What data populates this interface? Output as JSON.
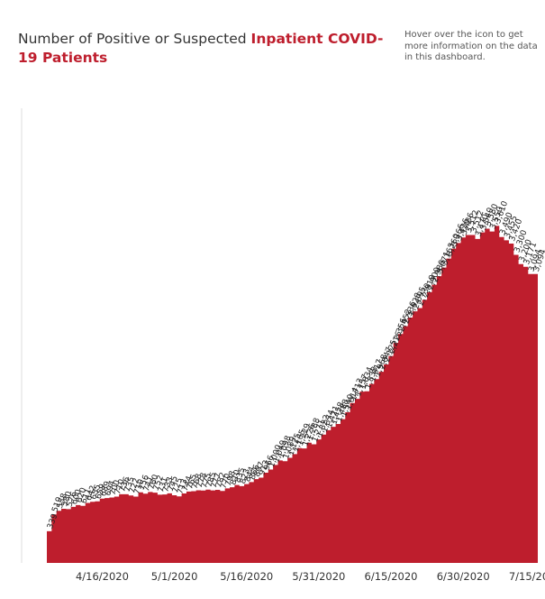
{
  "header": {
    "title_prefix": "Number of Positive or Suspected ",
    "title_highlight": "Inpatient COVID-19 Patients",
    "info_note": "Hover over the icon to get more information on the data in this dashboard."
  },
  "colors": {
    "area": "#be1e2d",
    "axis": "#dddddd",
    "highlight": "#be1e2d"
  },
  "chart_data": {
    "type": "area",
    "title": "Number of Positive or Suspected Inpatient COVID-19 Patients",
    "xlabel": "",
    "ylabel": "",
    "x_start": "4/5/2020",
    "x_end": "7/24/2020",
    "x_ticks": [
      "4/16/2020",
      "5/1/2020",
      "5/16/2020",
      "5/31/2020",
      "6/15/2020",
      "6/30/2020",
      "7/15/2020"
    ],
    "ylim": [
      0,
      4000
    ],
    "grid": false,
    "values": [
      339,
      519,
      558,
      580,
      576,
      600,
      620,
      611,
      642,
      655,
      659,
      689,
      694,
      700,
      710,
      736,
      735,
      722,
      710,
      756,
      741,
      760,
      752,
      731,
      733,
      745,
      725,
      713,
      744,
      765,
      768,
      778,
      775,
      785,
      777,
      782,
      770,
      798,
      810,
      835,
      823,
      844,
      866,
      897,
      913,
      966,
      1000,
      1049,
      1098,
      1089,
      1125,
      1165,
      1229,
      1226,
      1288,
      1271,
      1322,
      1374,
      1421,
      1458,
      1488,
      1540,
      1614,
      1713,
      1757,
      1834,
      1838,
      1917,
      1968,
      2047,
      2125,
      2216,
      2356,
      2452,
      2536,
      2628,
      2695,
      2730,
      2819,
      2900,
      2980,
      3071,
      3163,
      3260,
      3366,
      3426,
      3486,
      3512,
      3512,
      3470,
      3540,
      3580,
      3550,
      3610,
      3490,
      3455,
      3420,
      3300,
      3200,
      3171,
      3094,
      3094
    ],
    "data_labels": [
      "339",
      "519",
      "558",
      "580",
      "576",
      "600",
      "620",
      "611",
      "642",
      "655",
      "659",
      "689",
      "694",
      "700",
      "710",
      "736",
      "735",
      "722",
      "710",
      "756",
      "741",
      "760",
      "752",
      "731",
      "733",
      "745",
      "725",
      "713",
      "744",
      "765",
      "768",
      "778",
      "775",
      "785",
      "777",
      "782",
      "770",
      "798",
      "810",
      "835",
      "823",
      "844",
      "866",
      "897",
      "913",
      "966",
      "1,000",
      "1,049",
      "1,098",
      "1,089",
      "1,125",
      "1,165",
      "1,229",
      "1,226",
      "1,288",
      "1,271",
      "1,322",
      "1,374",
      "1,421",
      "1,458",
      "1,488",
      "1,540",
      "1,614",
      "1,713",
      "1,757",
      "1,834",
      "1,838",
      "1,917",
      "1,968",
      "2,047",
      "2,125",
      "2,216",
      "2,356",
      "2,452",
      "2,536",
      "2,628",
      "2,695",
      "2,730",
      "2,819",
      "2,900",
      "2,980",
      "3,071",
      "3,163",
      "3,260",
      "3,366",
      "3,426",
      "3,486",
      "3,512",
      "3,512",
      "3,470",
      "3,540",
      "3,580",
      "3,550",
      "3,610",
      "3,490",
      "3,455",
      "3,420",
      "3,300",
      "3,200",
      "3,171",
      "3,094",
      "3,094"
    ]
  }
}
